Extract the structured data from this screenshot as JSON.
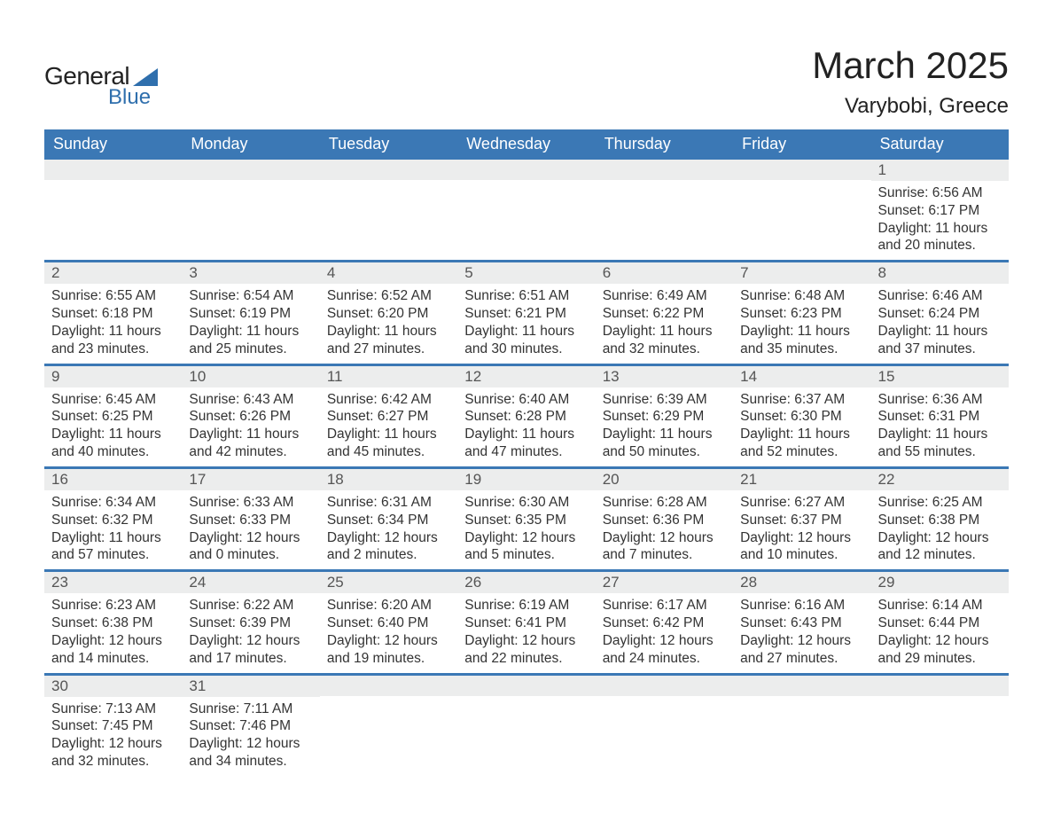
{
  "logo": {
    "text1": "General",
    "text2": "Blue",
    "accent": "#2f6fad"
  },
  "title": "March 2025",
  "location": "Varybobi, Greece",
  "columns": [
    "Sunday",
    "Monday",
    "Tuesday",
    "Wednesday",
    "Thursday",
    "Friday",
    "Saturday"
  ],
  "colors": {
    "header_bg": "#3b78b5",
    "header_text": "#ffffff",
    "daynum_bg": "#eceded",
    "row_border": "#3b78b5",
    "body_text": "#333333"
  },
  "weeks": [
    [
      null,
      null,
      null,
      null,
      null,
      null,
      {
        "n": "1",
        "sunrise": "6:56 AM",
        "sunset": "6:17 PM",
        "dl": "11 hours and 20 minutes."
      }
    ],
    [
      {
        "n": "2",
        "sunrise": "6:55 AM",
        "sunset": "6:18 PM",
        "dl": "11 hours and 23 minutes."
      },
      {
        "n": "3",
        "sunrise": "6:54 AM",
        "sunset": "6:19 PM",
        "dl": "11 hours and 25 minutes."
      },
      {
        "n": "4",
        "sunrise": "6:52 AM",
        "sunset": "6:20 PM",
        "dl": "11 hours and 27 minutes."
      },
      {
        "n": "5",
        "sunrise": "6:51 AM",
        "sunset": "6:21 PM",
        "dl": "11 hours and 30 minutes."
      },
      {
        "n": "6",
        "sunrise": "6:49 AM",
        "sunset": "6:22 PM",
        "dl": "11 hours and 32 minutes."
      },
      {
        "n": "7",
        "sunrise": "6:48 AM",
        "sunset": "6:23 PM",
        "dl": "11 hours and 35 minutes."
      },
      {
        "n": "8",
        "sunrise": "6:46 AM",
        "sunset": "6:24 PM",
        "dl": "11 hours and 37 minutes."
      }
    ],
    [
      {
        "n": "9",
        "sunrise": "6:45 AM",
        "sunset": "6:25 PM",
        "dl": "11 hours and 40 minutes."
      },
      {
        "n": "10",
        "sunrise": "6:43 AM",
        "sunset": "6:26 PM",
        "dl": "11 hours and 42 minutes."
      },
      {
        "n": "11",
        "sunrise": "6:42 AM",
        "sunset": "6:27 PM",
        "dl": "11 hours and 45 minutes."
      },
      {
        "n": "12",
        "sunrise": "6:40 AM",
        "sunset": "6:28 PM",
        "dl": "11 hours and 47 minutes."
      },
      {
        "n": "13",
        "sunrise": "6:39 AM",
        "sunset": "6:29 PM",
        "dl": "11 hours and 50 minutes."
      },
      {
        "n": "14",
        "sunrise": "6:37 AM",
        "sunset": "6:30 PM",
        "dl": "11 hours and 52 minutes."
      },
      {
        "n": "15",
        "sunrise": "6:36 AM",
        "sunset": "6:31 PM",
        "dl": "11 hours and 55 minutes."
      }
    ],
    [
      {
        "n": "16",
        "sunrise": "6:34 AM",
        "sunset": "6:32 PM",
        "dl": "11 hours and 57 minutes."
      },
      {
        "n": "17",
        "sunrise": "6:33 AM",
        "sunset": "6:33 PM",
        "dl": "12 hours and 0 minutes."
      },
      {
        "n": "18",
        "sunrise": "6:31 AM",
        "sunset": "6:34 PM",
        "dl": "12 hours and 2 minutes."
      },
      {
        "n": "19",
        "sunrise": "6:30 AM",
        "sunset": "6:35 PM",
        "dl": "12 hours and 5 minutes."
      },
      {
        "n": "20",
        "sunrise": "6:28 AM",
        "sunset": "6:36 PM",
        "dl": "12 hours and 7 minutes."
      },
      {
        "n": "21",
        "sunrise": "6:27 AM",
        "sunset": "6:37 PM",
        "dl": "12 hours and 10 minutes."
      },
      {
        "n": "22",
        "sunrise": "6:25 AM",
        "sunset": "6:38 PM",
        "dl": "12 hours and 12 minutes."
      }
    ],
    [
      {
        "n": "23",
        "sunrise": "6:23 AM",
        "sunset": "6:38 PM",
        "dl": "12 hours and 14 minutes."
      },
      {
        "n": "24",
        "sunrise": "6:22 AM",
        "sunset": "6:39 PM",
        "dl": "12 hours and 17 minutes."
      },
      {
        "n": "25",
        "sunrise": "6:20 AM",
        "sunset": "6:40 PM",
        "dl": "12 hours and 19 minutes."
      },
      {
        "n": "26",
        "sunrise": "6:19 AM",
        "sunset": "6:41 PM",
        "dl": "12 hours and 22 minutes."
      },
      {
        "n": "27",
        "sunrise": "6:17 AM",
        "sunset": "6:42 PM",
        "dl": "12 hours and 24 minutes."
      },
      {
        "n": "28",
        "sunrise": "6:16 AM",
        "sunset": "6:43 PM",
        "dl": "12 hours and 27 minutes."
      },
      {
        "n": "29",
        "sunrise": "6:14 AM",
        "sunset": "6:44 PM",
        "dl": "12 hours and 29 minutes."
      }
    ],
    [
      {
        "n": "30",
        "sunrise": "7:13 AM",
        "sunset": "7:45 PM",
        "dl": "12 hours and 32 minutes."
      },
      {
        "n": "31",
        "sunrise": "7:11 AM",
        "sunset": "7:46 PM",
        "dl": "12 hours and 34 minutes."
      },
      null,
      null,
      null,
      null,
      null
    ]
  ],
  "labels": {
    "sunrise": "Sunrise: ",
    "sunset": "Sunset: ",
    "daylight": "Daylight: "
  }
}
